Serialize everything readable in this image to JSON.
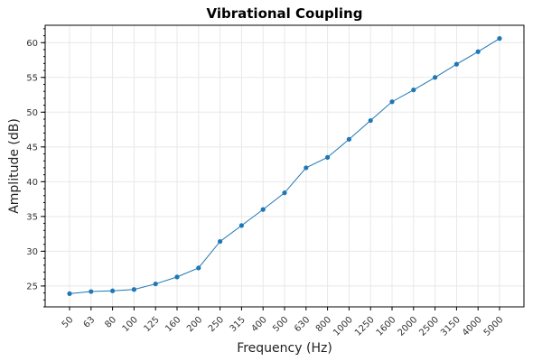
{
  "chart_data": {
    "type": "line",
    "title": "Vibrational Coupling",
    "xlabel": "Frequency (Hz)",
    "ylabel": "Amplitude (dB)",
    "categories": [
      "50",
      "63",
      "80",
      "100",
      "125",
      "160",
      "200",
      "250",
      "315",
      "400",
      "500",
      "630",
      "800",
      "1000",
      "1250",
      "1600",
      "2000",
      "2500",
      "3150",
      "4000",
      "5000"
    ],
    "series": [
      {
        "values": [
          23.9,
          24.2,
          24.3,
          24.5,
          25.3,
          26.3,
          27.6,
          31.4,
          33.7,
          36.0,
          38.4,
          42.0,
          43.5,
          46.1,
          48.8,
          51.5,
          53.2,
          55.0,
          56.9,
          58.7,
          60.6
        ]
      }
    ],
    "ylim": [
      22,
      62.5
    ],
    "yticks": [
      25,
      30,
      35,
      40,
      45,
      50,
      55,
      60
    ],
    "grid": true,
    "legend": "none",
    "colors": {
      "series": "#1f77b4"
    }
  }
}
